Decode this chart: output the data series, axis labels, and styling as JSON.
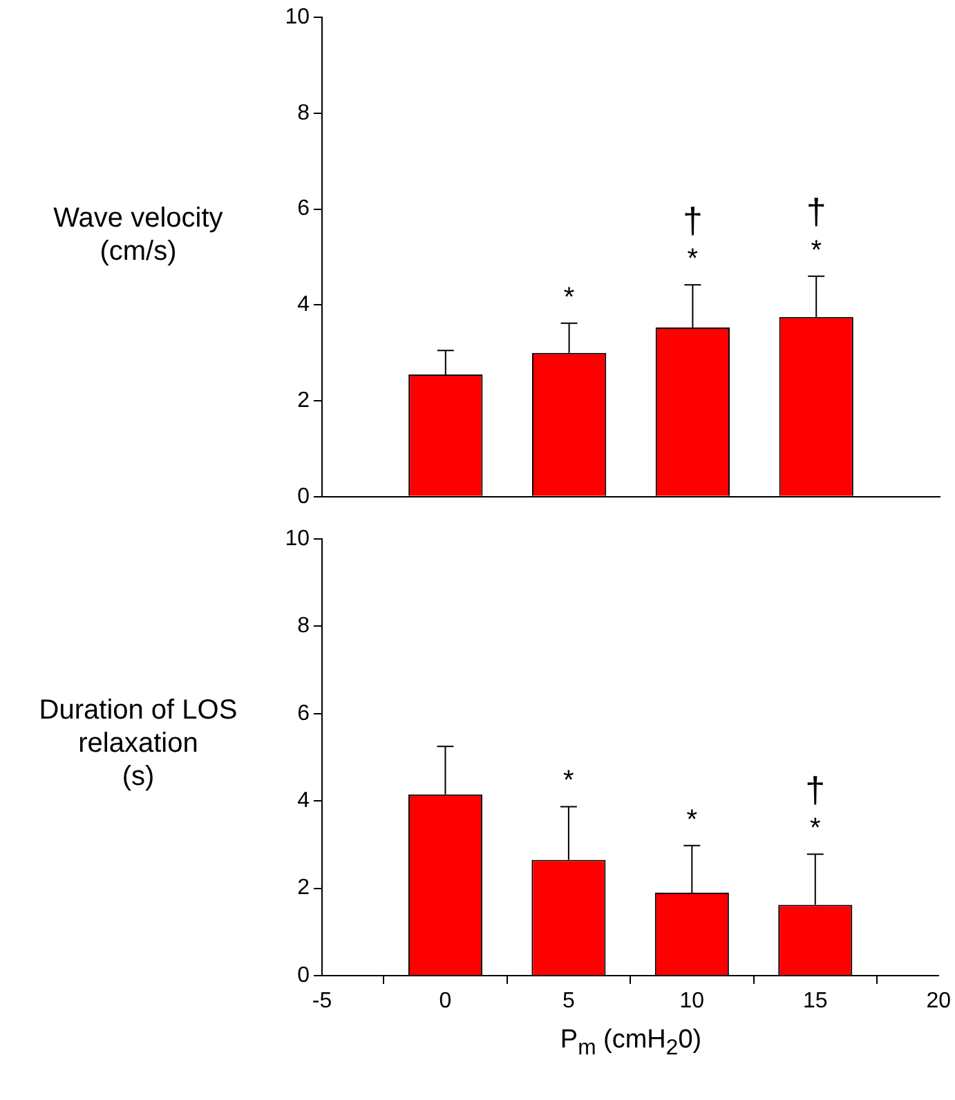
{
  "chart_data": [
    {
      "type": "bar",
      "ylabel": "Wave velocity\n(cm/s)",
      "x": [
        0,
        5,
        10,
        15
      ],
      "values": [
        2.55,
        3.0,
        3.53,
        3.75
      ],
      "color": "#ff0000",
      "errors": [
        [
          2.55,
          3.05
        ],
        [
          3.0,
          3.62
        ],
        [
          3.53,
          4.42
        ],
        [
          3.75,
          4.6
        ]
      ],
      "xlim": [
        -5,
        20
      ],
      "xticks": [
        -5,
        0,
        5,
        10,
        15,
        20
      ],
      "ylim": [
        0,
        10
      ],
      "yticks": [
        0,
        2,
        4,
        6,
        8,
        10
      ],
      "tick_labels": "y",
      "grid": false,
      "legend": false,
      "annotations": [
        "*",
        "*",
        "†",
        "*",
        "†"
      ]
    },
    {
      "type": "bar",
      "ylabel": "Duration of LOS\nrelaxation\n(s)",
      "xlabel": "P$_{m}$ (cmH$_{2}$0)",
      "x": [
        0,
        5,
        10,
        15
      ],
      "values": [
        4.15,
        2.65,
        1.9,
        1.62
      ],
      "color": "#ff0000",
      "errors": [
        [
          4.15,
          5.25
        ],
        [
          2.65,
          3.87
        ],
        [
          1.9,
          2.98
        ],
        [
          1.62,
          2.78
        ]
      ],
      "xlim": [
        -5,
        20
      ],
      "xticks": [
        -5,
        0,
        5,
        10,
        15,
        20
      ],
      "ylim": [
        0,
        10
      ],
      "yticks": [
        0,
        2,
        4,
        6,
        8,
        10
      ],
      "grid": false,
      "legend": false,
      "annotations": [
        "*",
        "*",
        "*",
        "†"
      ]
    }
  ]
}
